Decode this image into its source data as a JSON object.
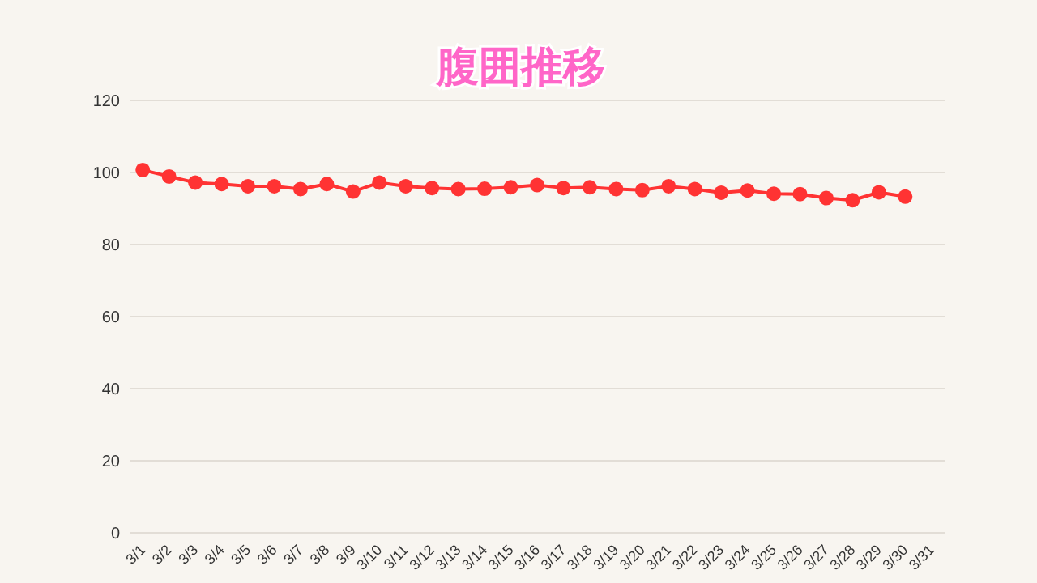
{
  "chart_data": {
    "type": "line",
    "title": "腹囲推移",
    "categories": [
      "3/1",
      "3/2",
      "3/3",
      "3/4",
      "3/5",
      "3/6",
      "3/7",
      "3/8",
      "3/9",
      "3/10",
      "3/11",
      "3/12",
      "3/13",
      "3/14",
      "3/15",
      "3/16",
      "3/17",
      "3/18",
      "3/19",
      "3/20",
      "3/21",
      "3/22",
      "3/23",
      "3/24",
      "3/25",
      "3/26",
      "3/27",
      "3/28",
      "3/29",
      "3/30",
      "3/31"
    ],
    "series": [
      {
        "color": "#ff3333",
        "values": [
          100.7,
          98.9,
          97.2,
          96.8,
          96.2,
          96.2,
          95.4,
          96.8,
          94.7,
          97.2,
          96.2,
          95.7,
          95.4,
          95.5,
          95.9,
          96.5,
          95.7,
          95.9,
          95.4,
          95.1,
          96.2,
          95.4,
          94.4,
          95.0,
          94.1,
          94.0,
          92.9,
          92.3,
          94.5,
          93.3,
          null
        ]
      }
    ],
    "ylim": [
      0,
      120
    ],
    "yticks": [
      0,
      20,
      40,
      60,
      80,
      100,
      120
    ],
    "grid": "y",
    "marker": "circle",
    "line_style": "solid"
  }
}
